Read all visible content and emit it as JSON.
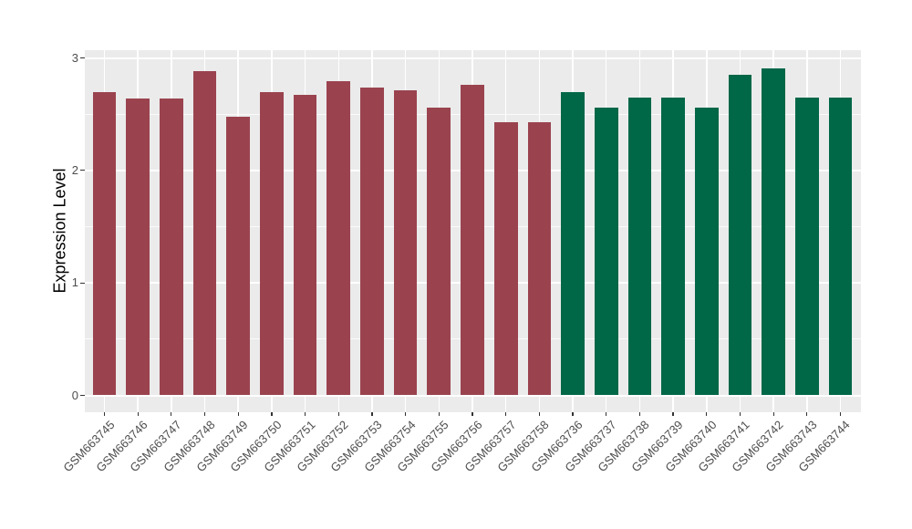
{
  "chart_data": {
    "type": "bar",
    "title": "",
    "xlabel": "",
    "ylabel": "Expression Level",
    "ylim": [
      0,
      3
    ],
    "yticks": [
      0,
      1,
      2,
      3
    ],
    "yticks_minor": [
      0.5,
      1.5,
      2.5
    ],
    "grid": "white major/minor gridlines on grey panel, vertical gridline per category",
    "legend_position": "none",
    "categories": [
      "GSM663745",
      "GSM663746",
      "GSM663747",
      "GSM663748",
      "GSM663749",
      "GSM663750",
      "GSM663751",
      "GSM663752",
      "GSM663753",
      "GSM663754",
      "GSM663755",
      "GSM663756",
      "GSM663757",
      "GSM663758",
      "GSM663736",
      "GSM663737",
      "GSM663738",
      "GSM663739",
      "GSM663740",
      "GSM663741",
      "GSM663742",
      "GSM663743",
      "GSM663744"
    ],
    "values": [
      2.7,
      2.64,
      2.64,
      2.88,
      2.48,
      2.7,
      2.67,
      2.79,
      2.74,
      2.71,
      2.56,
      2.76,
      2.43,
      2.43,
      2.7,
      2.56,
      2.65,
      2.65,
      2.56,
      2.85,
      2.91,
      2.65,
      2.65
    ],
    "groups": [
      {
        "name": "group-GSM663745-GSM663758",
        "color": "#9A434F",
        "count": 14
      },
      {
        "name": "group-GSM663736-GSM663744",
        "color": "#006747",
        "count": 9
      }
    ]
  },
  "colors": {
    "panel_background": "#EBEBEB",
    "grid": "#FFFFFF",
    "bar_red": "#9A434F",
    "bar_green": "#006747",
    "axis_text": "#4D4D4D",
    "axis_title": "#000000",
    "tick_mark": "#333333",
    "page_background": "#FFFFFF"
  }
}
